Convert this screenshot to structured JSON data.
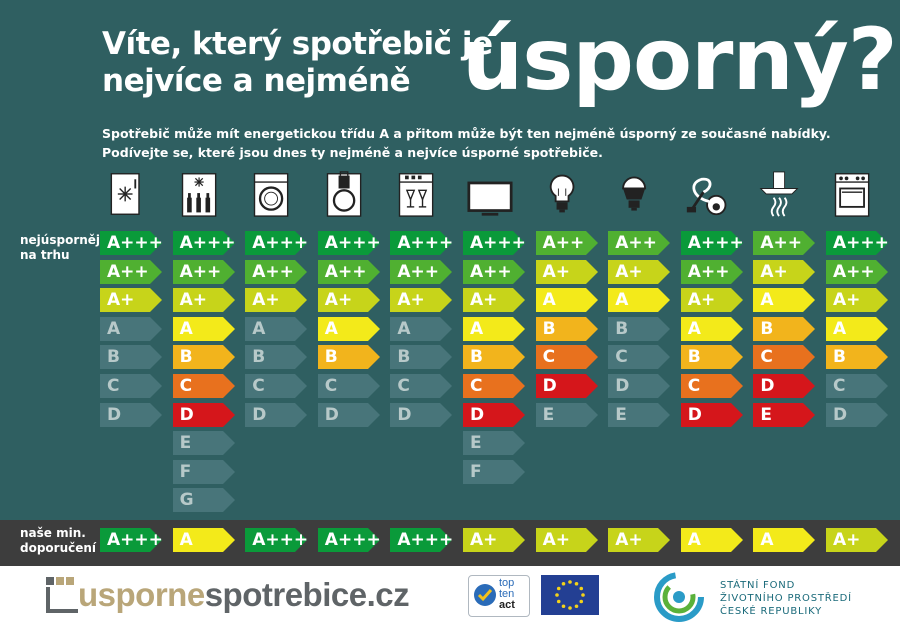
{
  "title_line1": "Víte, který spotřebič je",
  "title_line2": "nejvíce a nejméně",
  "title_big": "úsporný?",
  "intro_line1": "Spotřebič může mít energetickou třídu A a přitom může být ten nejméně úsporný ze současné nabídky.",
  "intro_line2": "Podívejte se, které jsou dnes ty nejméně a nejvíce úsporné spotřebiče.",
  "label_best_line1": "nejúspornější",
  "label_best_line2": "na trhu",
  "label_rec_line1": "naše min.",
  "label_rec_line2": "doporučení",
  "colors": {
    "A+++": "#0a9a3a",
    "A++": "#50b031",
    "A+": "#c7d41a",
    "A": "#f3ea1a",
    "B": "#f2b41c",
    "C": "#e8711e",
    "D": "#d5161b",
    "E": "#d5161b",
    "grey": "#48757a",
    "background": "#2f5f61",
    "band": "#3d3d3d"
  },
  "appliances": [
    {
      "icon": "freezer-icon",
      "classes": [
        {
          "label": "A+++",
          "active": true
        },
        {
          "label": "A++",
          "active": true
        },
        {
          "label": "A+",
          "active": true
        },
        {
          "label": "A",
          "active": false
        },
        {
          "label": "B",
          "active": false
        },
        {
          "label": "C",
          "active": false
        },
        {
          "label": "D",
          "active": false
        }
      ],
      "recommended": "A+++"
    },
    {
      "icon": "wine-cooler-icon",
      "classes": [
        {
          "label": "A+++",
          "active": true
        },
        {
          "label": "A++",
          "active": true
        },
        {
          "label": "A+",
          "active": true
        },
        {
          "label": "A",
          "active": true
        },
        {
          "label": "B",
          "active": true
        },
        {
          "label": "C",
          "active": true
        },
        {
          "label": "D",
          "active": true
        },
        {
          "label": "E",
          "active": false
        },
        {
          "label": "F",
          "active": false
        },
        {
          "label": "G",
          "active": false
        }
      ],
      "recommended": "A"
    },
    {
      "icon": "washing-machine-icon",
      "classes": [
        {
          "label": "A+++",
          "active": true
        },
        {
          "label": "A++",
          "active": true
        },
        {
          "label": "A+",
          "active": true
        },
        {
          "label": "A",
          "active": false
        },
        {
          "label": "B",
          "active": false
        },
        {
          "label": "C",
          "active": false
        },
        {
          "label": "D",
          "active": false
        }
      ],
      "recommended": "A+++"
    },
    {
      "icon": "washer-dryer-icon",
      "classes": [
        {
          "label": "A+++",
          "active": true
        },
        {
          "label": "A++",
          "active": true
        },
        {
          "label": "A+",
          "active": true
        },
        {
          "label": "A",
          "active": true
        },
        {
          "label": "B",
          "active": true
        },
        {
          "label": "C",
          "active": false
        },
        {
          "label": "D",
          "active": false
        }
      ],
      "recommended": "A+++"
    },
    {
      "icon": "dishwasher-icon",
      "classes": [
        {
          "label": "A+++",
          "active": true
        },
        {
          "label": "A++",
          "active": true
        },
        {
          "label": "A+",
          "active": true
        },
        {
          "label": "A",
          "active": false
        },
        {
          "label": "B",
          "active": false
        },
        {
          "label": "C",
          "active": false
        },
        {
          "label": "D",
          "active": false
        }
      ],
      "recommended": "A+++"
    },
    {
      "icon": "tv-icon",
      "classes": [
        {
          "label": "A+++",
          "active": true
        },
        {
          "label": "A++",
          "active": true
        },
        {
          "label": "A+",
          "active": true
        },
        {
          "label": "A",
          "active": true
        },
        {
          "label": "B",
          "active": true
        },
        {
          "label": "C",
          "active": true
        },
        {
          "label": "D",
          "active": true
        },
        {
          "label": "E",
          "active": false
        },
        {
          "label": "F",
          "active": false
        }
      ],
      "recommended": "A+"
    },
    {
      "icon": "bulb-icon",
      "classes": [
        {
          "label": "A++",
          "active": true
        },
        {
          "label": "A+",
          "active": true
        },
        {
          "label": "A",
          "active": true
        },
        {
          "label": "B",
          "active": true
        },
        {
          "label": "C",
          "active": true
        },
        {
          "label": "D",
          "active": true
        },
        {
          "label": "E",
          "active": false
        }
      ],
      "recommended": "A+"
    },
    {
      "icon": "led-bulb-icon",
      "classes": [
        {
          "label": "A++",
          "active": true
        },
        {
          "label": "A+",
          "active": true
        },
        {
          "label": "A",
          "active": true
        },
        {
          "label": "B",
          "active": false
        },
        {
          "label": "C",
          "active": false
        },
        {
          "label": "D",
          "active": false
        },
        {
          "label": "E",
          "active": false
        }
      ],
      "recommended": "A+"
    },
    {
      "icon": "vacuum-icon",
      "classes": [
        {
          "label": "A+++",
          "active": true
        },
        {
          "label": "A++",
          "active": true
        },
        {
          "label": "A+",
          "active": true
        },
        {
          "label": "A",
          "active": true
        },
        {
          "label": "B",
          "active": true
        },
        {
          "label": "C",
          "active": true
        },
        {
          "label": "D",
          "active": true
        }
      ],
      "recommended": "A"
    },
    {
      "icon": "cooker-hood-icon",
      "classes": [
        {
          "label": "A++",
          "active": true
        },
        {
          "label": "A+",
          "active": true
        },
        {
          "label": "A",
          "active": true
        },
        {
          "label": "B",
          "active": true
        },
        {
          "label": "C",
          "active": true
        },
        {
          "label": "D",
          "active": true
        },
        {
          "label": "E",
          "active": true
        }
      ],
      "recommended": "A"
    },
    {
      "icon": "oven-icon",
      "classes": [
        {
          "label": "A+++",
          "active": true
        },
        {
          "label": "A++",
          "active": true
        },
        {
          "label": "A+",
          "active": true
        },
        {
          "label": "A",
          "active": true
        },
        {
          "label": "B",
          "active": true
        },
        {
          "label": "C",
          "active": false
        },
        {
          "label": "D",
          "active": false
        }
      ],
      "recommended": "A+"
    }
  ],
  "footer": {
    "logo_part1": "usporne",
    "logo_part2": "spotrebice.cz",
    "topten_line1": "top",
    "topten_line2": "ten",
    "topten_line3": "act",
    "sf_line1": "STÁTNÍ FOND",
    "sf_line2": "ŽIVOTNÍHO PROSTŘEDÍ",
    "sf_line3": "ČESKÉ REPUBLIKY"
  }
}
